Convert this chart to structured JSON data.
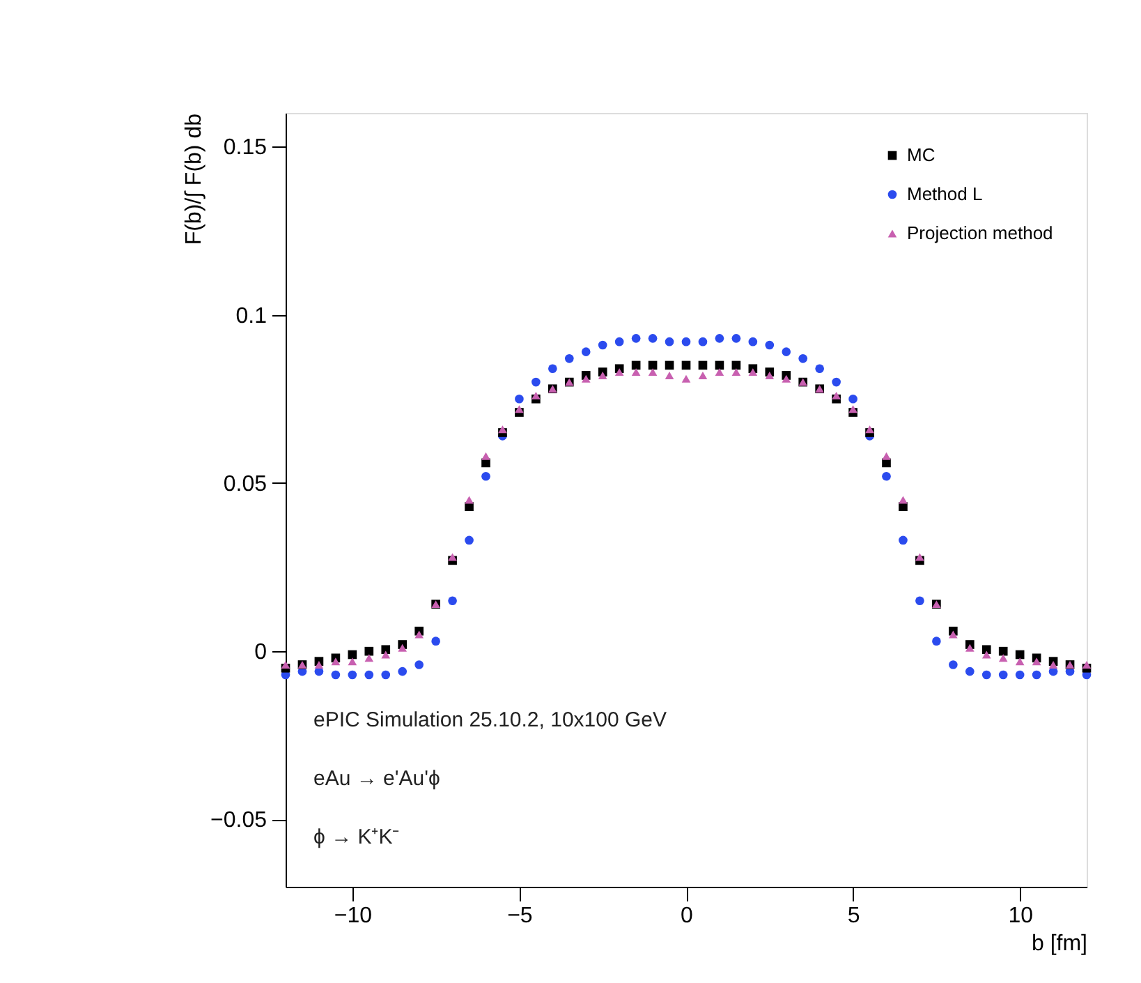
{
  "chart_data": {
    "type": "scatter",
    "xlabel": "b [fm]",
    "ylabel": "F(b)/∫ F(b) db",
    "xlim": [
      -12,
      12
    ],
    "xticks": [
      -10,
      -5,
      0,
      5,
      10
    ],
    "ylim": [
      -0.07,
      0.16
    ],
    "yticks": [
      -0.05,
      {
        "value": 0,
        "label": "0"
      },
      0.05,
      {
        "value": 0.1,
        "label": "0.1"
      },
      0.15
    ],
    "grid": false,
    "legend": "top right",
    "x": [
      -12,
      -11.5,
      -11,
      -10.5,
      -10,
      -9.5,
      -9,
      -8.5,
      -8,
      -7.5,
      -7,
      -6.5,
      -6,
      -5.5,
      -5,
      -4.5,
      -4,
      -3.5,
      -3,
      -2.5,
      -2,
      -1.5,
      -1,
      -0.5,
      0,
      0.5,
      1,
      1.5,
      2,
      2.5,
      3,
      3.5,
      4,
      4.5,
      5,
      5.5,
      6,
      6.5,
      7,
      7.5,
      8,
      8.5,
      9,
      9.5,
      10,
      10.5,
      11,
      11.5,
      12
    ],
    "series": [
      {
        "name": "MC",
        "color": "#000000",
        "marker": "square",
        "values": [
          -0.005,
          -0.004,
          -0.003,
          -0.002,
          -0.001,
          0,
          0.0005,
          0.002,
          0.006,
          0.014,
          0.027,
          0.043,
          0.056,
          0.065,
          0.071,
          0.075,
          0.078,
          0.08,
          0.082,
          0.083,
          0.084,
          0.085,
          0.085,
          0.085,
          0.085,
          0.085,
          0.085,
          0.085,
          0.084,
          0.083,
          0.082,
          0.08,
          0.078,
          0.075,
          0.071,
          0.065,
          0.056,
          0.043,
          0.027,
          0.014,
          0.006,
          0.002,
          0.0005,
          0,
          -0.001,
          -0.002,
          -0.003,
          -0.004,
          -0.005
        ]
      },
      {
        "name": "Method L",
        "color": "#2b4bee",
        "marker": "circle",
        "values": [
          -0.007,
          -0.006,
          -0.006,
          -0.007,
          -0.007,
          -0.007,
          -0.007,
          -0.006,
          -0.004,
          0.003,
          0.015,
          0.033,
          0.052,
          0.064,
          0.075,
          0.08,
          0.084,
          0.087,
          0.089,
          0.091,
          0.092,
          0.093,
          0.093,
          0.092,
          0.092,
          0.092,
          0.093,
          0.093,
          0.092,
          0.091,
          0.089,
          0.087,
          0.084,
          0.08,
          0.075,
          0.064,
          0.052,
          0.033,
          0.015,
          0.003,
          -0.004,
          -0.006,
          -0.007,
          -0.007,
          -0.007,
          -0.007,
          -0.006,
          -0.006,
          -0.007
        ]
      },
      {
        "name": "Projection method",
        "color": "#c860b0",
        "marker": "triangle",
        "values": [
          -0.004,
          -0.004,
          -0.004,
          -0.003,
          -0.003,
          -0.002,
          -0.001,
          0.001,
          0.005,
          0.014,
          0.028,
          0.045,
          0.058,
          0.066,
          0.072,
          0.076,
          0.078,
          0.08,
          0.081,
          0.082,
          0.083,
          0.083,
          0.083,
          0.082,
          0.081,
          0.082,
          0.083,
          0.083,
          0.083,
          0.082,
          0.081,
          0.08,
          0.078,
          0.076,
          0.072,
          0.066,
          0.058,
          0.045,
          0.028,
          0.014,
          0.005,
          0.001,
          -0.001,
          -0.002,
          -0.003,
          -0.003,
          -0.004,
          -0.004,
          -0.004
        ]
      }
    ],
    "annotations": [
      "ePIC Simulation 25.10.2, 10x100 GeV",
      "eAu → e'Au'ϕ",
      "ϕ → K⁺K⁻"
    ]
  }
}
